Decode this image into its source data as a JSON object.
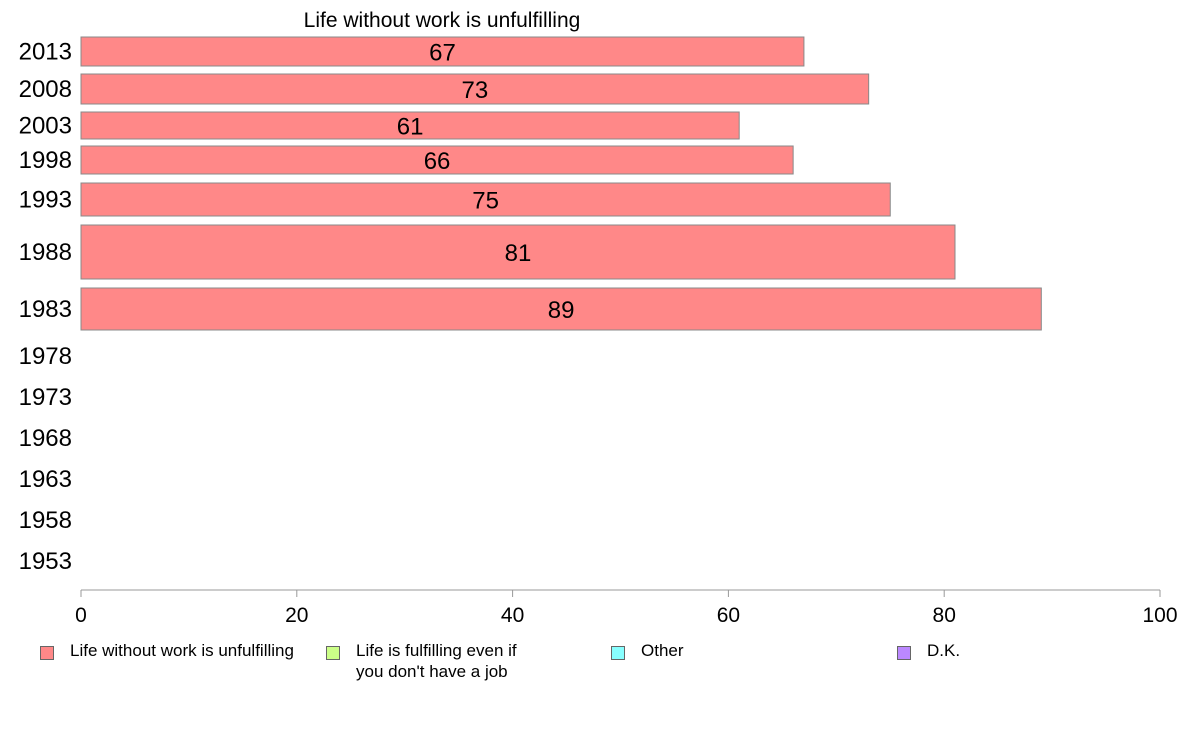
{
  "chart_data": {
    "type": "bar",
    "orientation": "horizontal",
    "title": "Life without work is unfulfilling",
    "categories": [
      "2013",
      "2008",
      "2003",
      "1998",
      "1993",
      "1988",
      "1983",
      "1978",
      "1973",
      "1968",
      "1963",
      "1958",
      "1953"
    ],
    "series": [
      {
        "name": "Life without work is unfulfilling",
        "color": "#ff8888",
        "values": [
          67,
          73,
          61,
          66,
          75,
          81,
          89,
          null,
          null,
          null,
          null,
          null,
          null
        ]
      }
    ],
    "data_labels": [
      "67",
      "73",
      "61",
      "66",
      "75",
      "81",
      "89"
    ],
    "xlim": [
      0,
      100
    ],
    "xticks": [
      0,
      20,
      40,
      60,
      80,
      100
    ],
    "grid": false,
    "legend_position": "bottom"
  },
  "legend": [
    {
      "label": "Life without work is unfulfilling",
      "color": "#ff8888"
    },
    {
      "label": "Life is fulfilling even if\nyou don't have a job",
      "color": "#ccff88"
    },
    {
      "label": "Other",
      "color": "#88ffff"
    },
    {
      "label": "D.K.",
      "color": "#bb88ff"
    }
  ]
}
